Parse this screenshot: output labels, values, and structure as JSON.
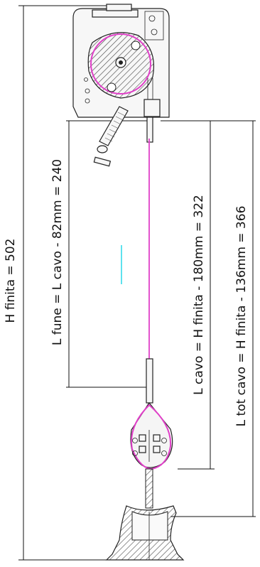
{
  "dimensions": {
    "h_finita": "H finita = 502",
    "l_fune": "L fune = L cavo - 82mm = 240",
    "l_cavo": "L cavo = H finita - 180mm = 322",
    "l_tot_cavo": "L tot cavo = H finita - 136mm = 366"
  },
  "colors": {
    "cable": "#e040c8",
    "accent": "#28d8e8",
    "line": "#111111"
  }
}
